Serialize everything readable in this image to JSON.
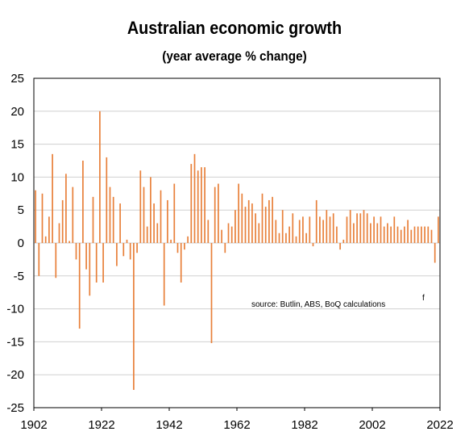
{
  "chart_data": {
    "type": "bar",
    "title": "Australian economic growth",
    "subtitle": "(year average % change)",
    "xlabel": "",
    "ylabel": "",
    "ylim": [
      -25,
      25
    ],
    "xlim": [
      1902,
      2022
    ],
    "y_ticks": [
      "25",
      "20",
      "15",
      "10",
      "5",
      "0",
      "-5",
      "-10",
      "-15",
      "-20",
      "-25"
    ],
    "x_ticks": [
      "1902",
      "1922",
      "1942",
      "1962",
      "1982",
      "2002",
      "2022"
    ],
    "grid": "horizontal",
    "source_note": "source:  Butlin, ABS, BoQ calculations",
    "forecast_marker": "f",
    "bar_color": "#E8803A",
    "x": [
      1902,
      1903,
      1904,
      1905,
      1906,
      1907,
      1908,
      1909,
      1910,
      1911,
      1912,
      1913,
      1914,
      1915,
      1916,
      1917,
      1918,
      1919,
      1920,
      1921,
      1922,
      1923,
      1924,
      1925,
      1926,
      1927,
      1928,
      1929,
      1930,
      1931,
      1932,
      1933,
      1934,
      1935,
      1936,
      1937,
      1938,
      1939,
      1940,
      1941,
      1942,
      1943,
      1944,
      1945,
      1946,
      1947,
      1948,
      1949,
      1950,
      1951,
      1952,
      1953,
      1954,
      1955,
      1956,
      1957,
      1958,
      1959,
      1960,
      1961,
      1962,
      1963,
      1964,
      1965,
      1966,
      1967,
      1968,
      1969,
      1970,
      1971,
      1972,
      1973,
      1974,
      1975,
      1976,
      1977,
      1978,
      1979,
      1980,
      1981,
      1982,
      1983,
      1984,
      1985,
      1986,
      1987,
      1988,
      1989,
      1990,
      1991,
      1992,
      1993,
      1994,
      1995,
      1996,
      1997,
      1998,
      1999,
      2000,
      2001,
      2002,
      2003,
      2004,
      2005,
      2006,
      2007,
      2008,
      2009,
      2010,
      2011,
      2012,
      2013,
      2014,
      2015,
      2016,
      2017,
      2018,
      2019,
      2020,
      2021
    ],
    "values": [
      8,
      -5,
      7.5,
      1,
      4,
      13.5,
      -5.3,
      3,
      6.5,
      10.5,
      0.3,
      8.5,
      -2.5,
      -13,
      12.5,
      -4,
      -8,
      7,
      -6,
      20,
      -6,
      13,
      8.5,
      7,
      -3.5,
      6,
      -2,
      0.5,
      -2.5,
      -22.3,
      -1.5,
      11,
      8.5,
      2.5,
      10,
      6,
      3,
      8,
      -9.5,
      6.5,
      0.5,
      9,
      -1.5,
      -6,
      -1,
      1,
      12,
      13.5,
      11,
      11.5,
      11.5,
      3.5,
      -15.2,
      8.5,
      9,
      2,
      -1.5,
      3,
      2.5,
      5,
      9,
      7.5,
      5.5,
      6.5,
      6,
      4.5,
      3,
      7.5,
      5.5,
      6.5,
      7,
      3.5,
      1.5,
      5,
      1.5,
      2.5,
      4.5,
      1,
      3.5,
      4,
      1.5,
      4,
      -0.5,
      6.5,
      4,
      3.5,
      5,
      4,
      4.5,
      2.5,
      -1,
      0.5,
      4,
      5,
      3,
      4.5,
      4.5,
      5,
      4.5,
      3,
      4,
      3,
      4,
      2.5,
      3,
      2.5,
      4,
      2.5,
      2,
      2.5,
      3.5,
      2,
      2.5,
      2.5,
      2.5,
      2.5,
      2.5,
      2,
      -3,
      4
    ]
  }
}
